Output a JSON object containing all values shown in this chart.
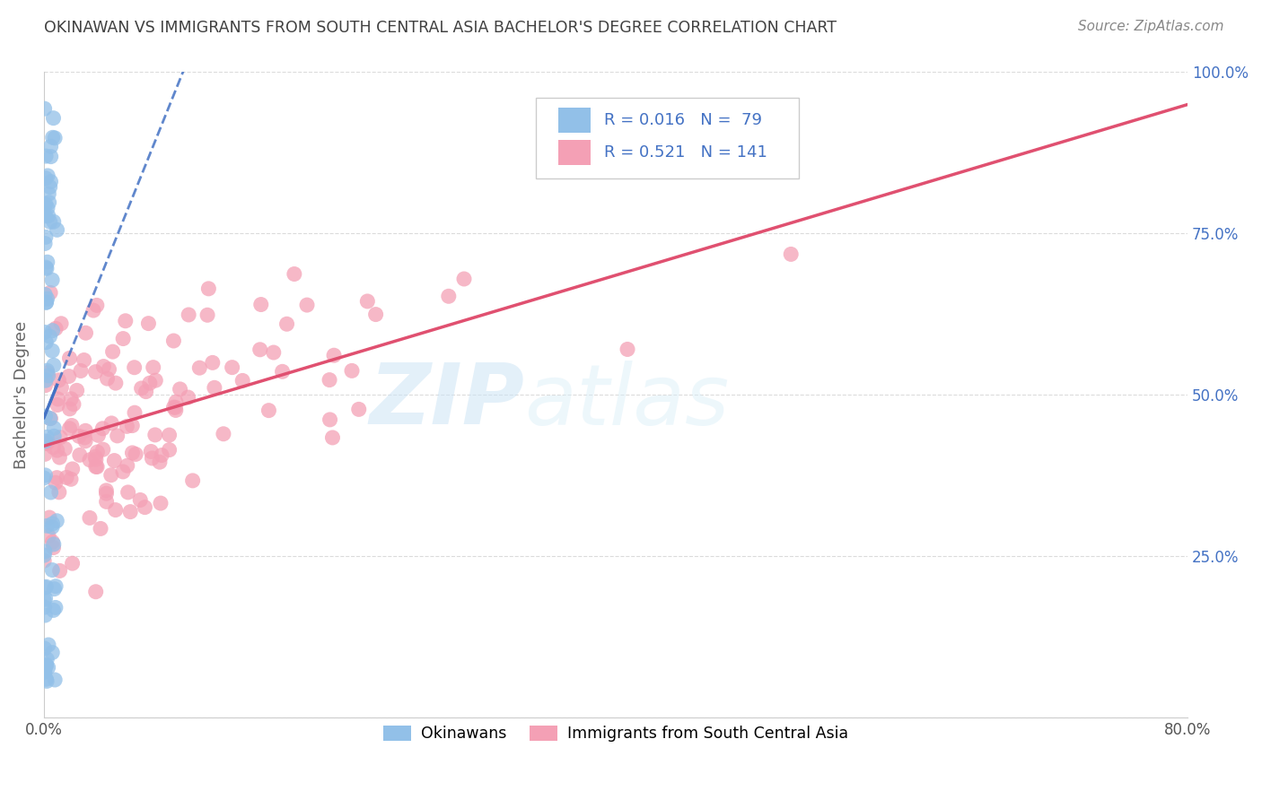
{
  "title": "OKINAWAN VS IMMIGRANTS FROM SOUTH CENTRAL ASIA BACHELOR'S DEGREE CORRELATION CHART",
  "source_text": "Source: ZipAtlas.com",
  "ylabel": "Bachelor's Degree",
  "xlim": [
    0.0,
    0.8
  ],
  "ylim": [
    0.0,
    1.0
  ],
  "y_ticks_right": [
    0.25,
    0.5,
    0.75,
    1.0
  ],
  "y_tick_labels_right": [
    "25.0%",
    "50.0%",
    "75.0%",
    "100.0%"
  ],
  "blue_color": "#92c0e8",
  "pink_color": "#f4a0b5",
  "blue_line_color": "#4472c4",
  "pink_line_color": "#e05070",
  "legend_text_color": "#4472c4",
  "watermark_zip": "ZIP",
  "watermark_atlas": "atlas",
  "title_color": "#404040",
  "background_color": "#ffffff",
  "blue_R": 0.016,
  "blue_N": 79,
  "pink_R": 0.521,
  "pink_N": 141,
  "grid_color": "#cccccc",
  "source_color": "#888888",
  "ylabel_color": "#666666"
}
